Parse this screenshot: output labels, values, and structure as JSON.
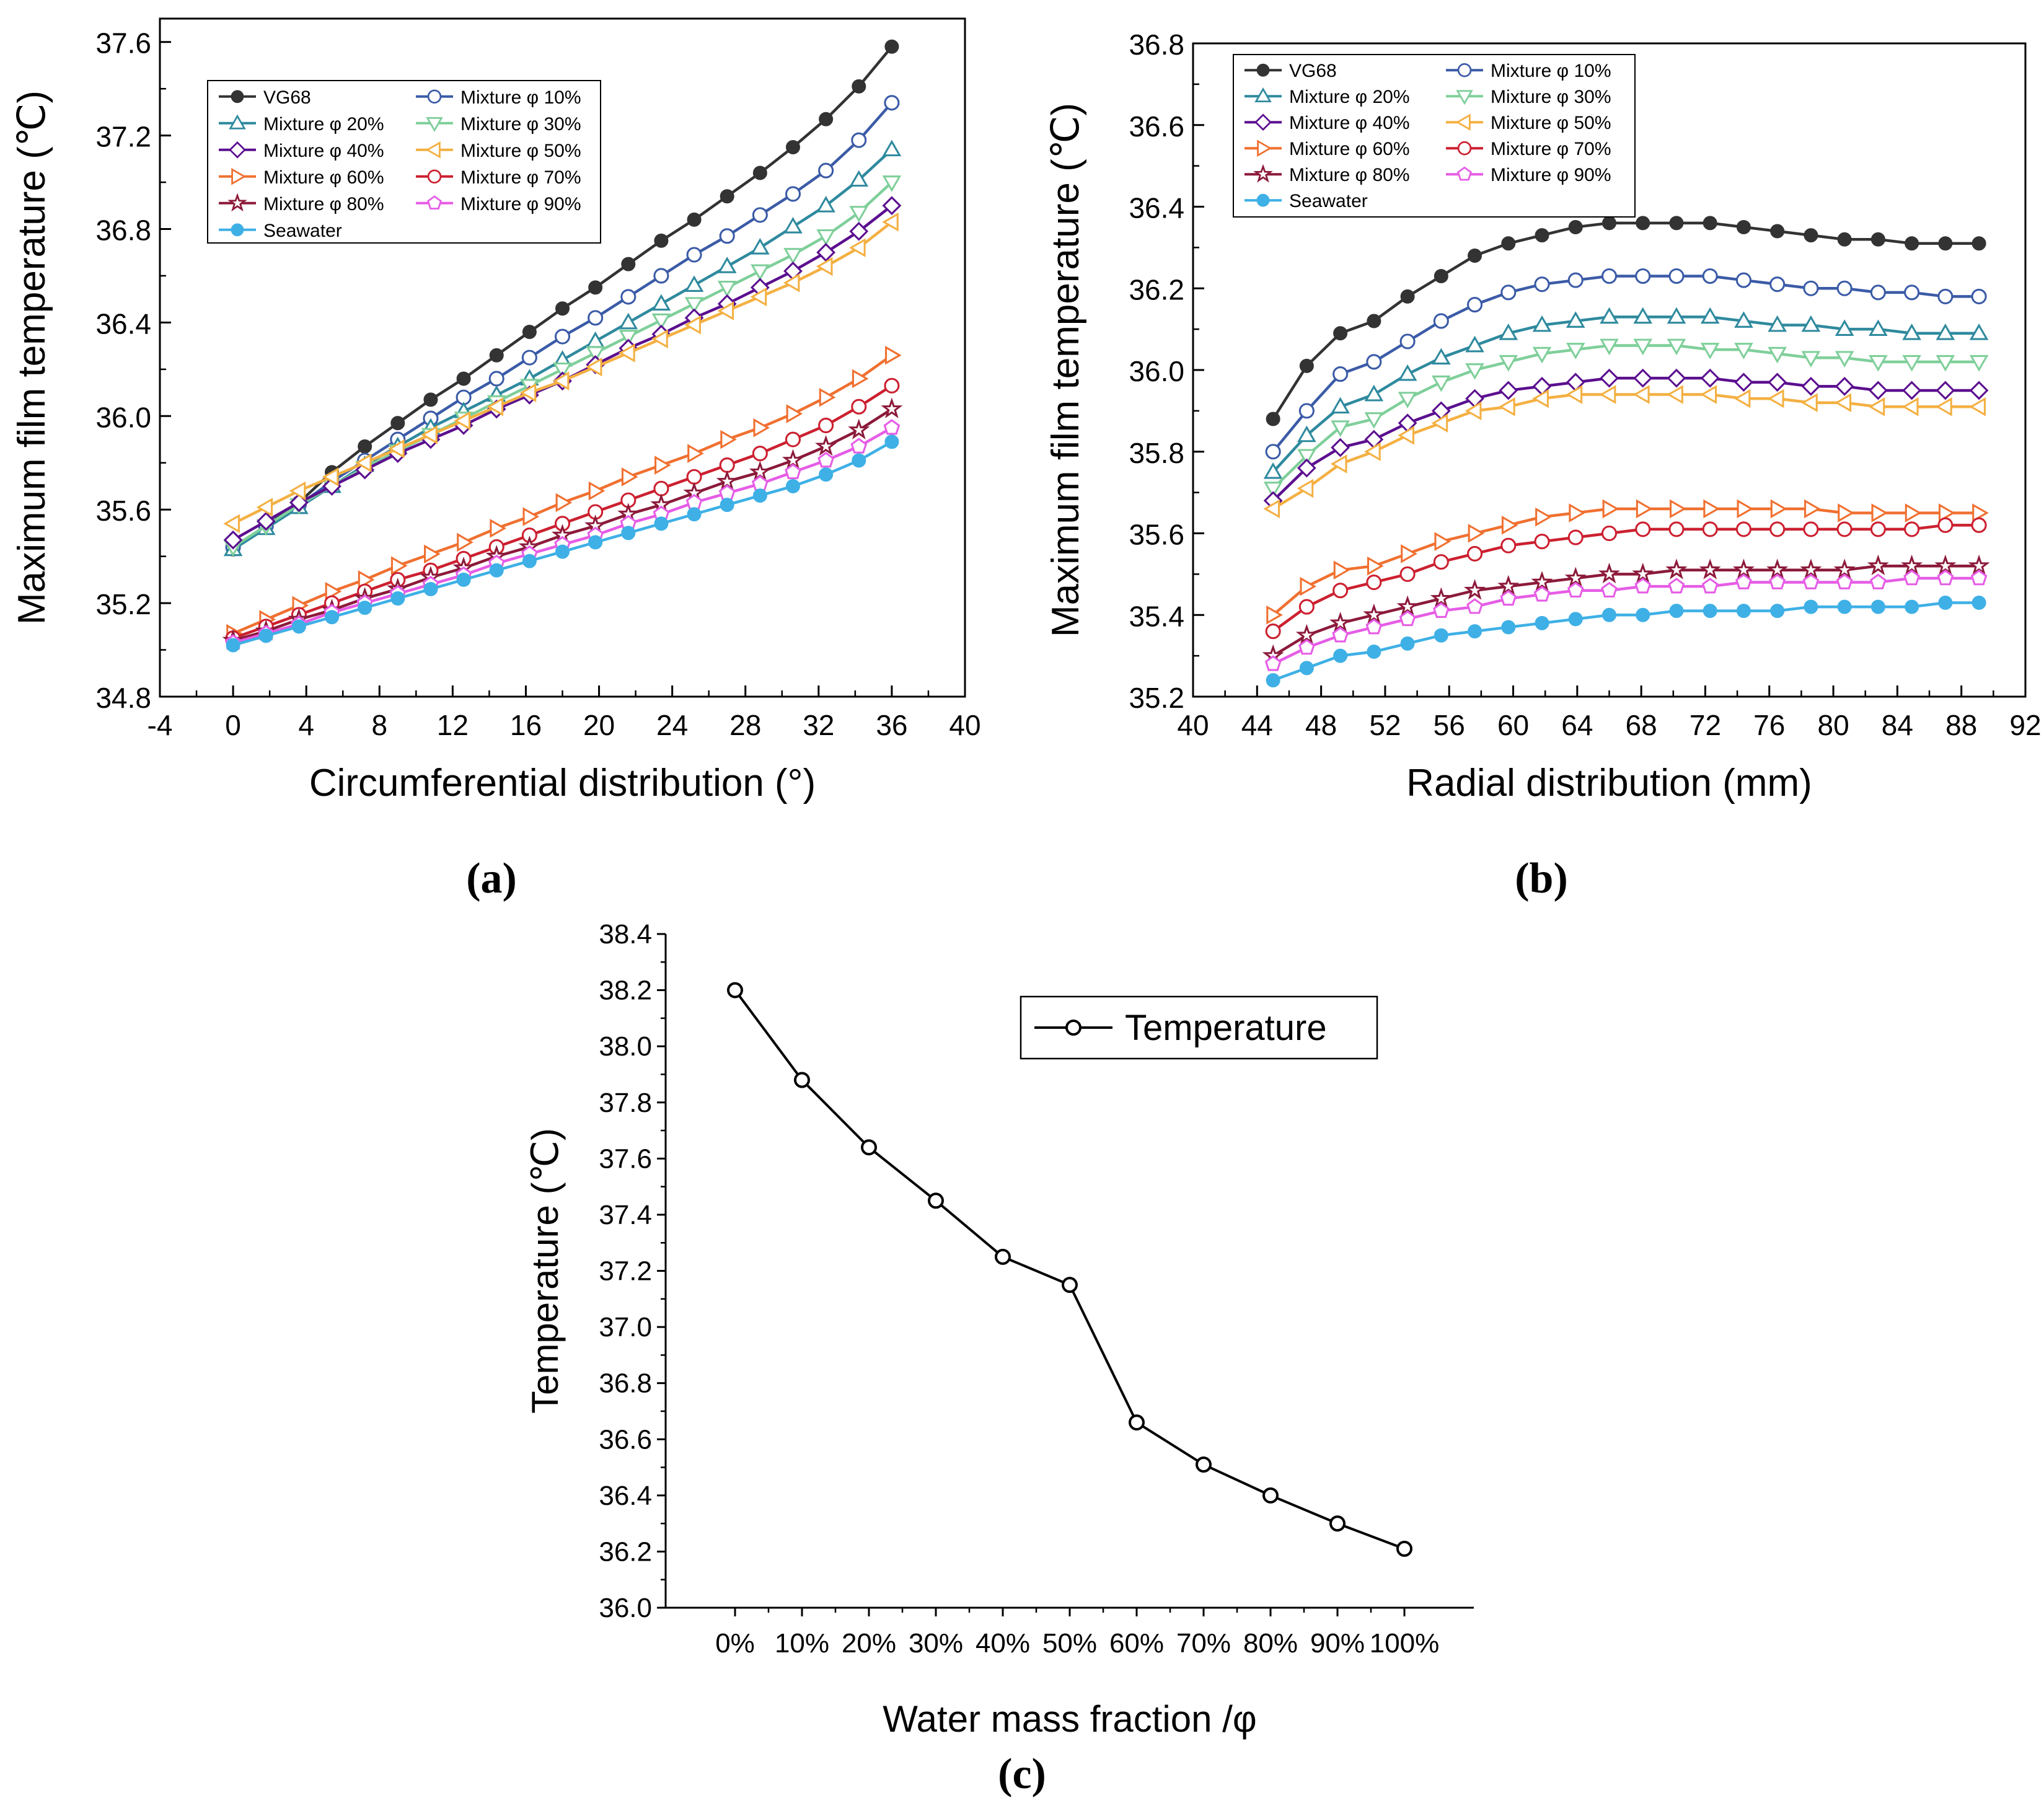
{
  "panels": {
    "a": "(a)",
    "b": "(b)",
    "c": "(c)"
  },
  "chart_data": [
    {
      "id": "a",
      "type": "line",
      "xlabel": "Circumferential distribution (°)",
      "ylabel": "Maximum film temperature (℃)",
      "xlim": [
        -4,
        40
      ],
      "ylim": [
        34.8,
        37.7
      ],
      "xticks": [
        -4,
        0,
        4,
        8,
        12,
        16,
        20,
        24,
        28,
        32,
        36,
        40
      ],
      "xtick_labels": [
        "-4",
        "0",
        "4",
        "8",
        "12",
        "16",
        "20",
        "24",
        "28",
        "32",
        "36",
        "40"
      ],
      "yticks": [
        34.8,
        35.2,
        35.6,
        36.0,
        36.4,
        36.8,
        37.2,
        37.6
      ],
      "ytick_labels": [
        "34.8",
        "35.2",
        "35.6",
        "36.0",
        "36.4",
        "36.8",
        "37.2",
        "37.6"
      ],
      "legend_position": "top-left",
      "x": [
        0,
        1.8,
        3.6,
        5.4,
        7.2,
        9.0,
        10.8,
        12.6,
        14.4,
        16.2,
        18.0,
        19.8,
        21.6,
        23.4,
        25.2,
        27.0,
        28.8,
        30.6,
        32.4,
        34.2,
        36.0
      ],
      "series": [
        {
          "name": "VG68",
          "color": "#333333",
          "marker": "filled-circle",
          "values": [
            35.43,
            35.53,
            35.63,
            35.76,
            35.87,
            35.97,
            36.07,
            36.16,
            36.26,
            36.36,
            36.46,
            36.55,
            36.65,
            36.75,
            36.84,
            36.94,
            37.04,
            37.15,
            37.27,
            37.41,
            37.58
          ]
        },
        {
          "name": "Mixture φ 10%",
          "color": "#3b5ba7",
          "marker": "circle",
          "values": [
            35.44,
            35.53,
            35.62,
            35.72,
            35.81,
            35.9,
            35.99,
            36.08,
            36.16,
            36.25,
            36.34,
            36.42,
            36.51,
            36.6,
            36.69,
            36.77,
            36.86,
            36.95,
            37.05,
            37.18,
            37.34
          ]
        },
        {
          "name": "Mixture φ 20%",
          "color": "#2f8a9e",
          "marker": "triangle-up",
          "values": [
            35.43,
            35.52,
            35.61,
            35.7,
            35.79,
            35.87,
            35.95,
            36.02,
            36.09,
            36.16,
            36.24,
            36.32,
            36.4,
            36.48,
            36.56,
            36.64,
            36.72,
            36.81,
            36.9,
            37.01,
            37.14
          ]
        },
        {
          "name": "Mixture φ 30%",
          "color": "#7fcf9a",
          "marker": "triangle-down",
          "values": [
            35.44,
            35.53,
            35.62,
            35.7,
            35.78,
            35.85,
            35.92,
            35.99,
            36.06,
            36.13,
            36.2,
            36.27,
            36.34,
            36.41,
            36.48,
            36.55,
            36.62,
            36.69,
            36.77,
            36.87,
            37.0
          ]
        },
        {
          "name": "Mixture φ 40%",
          "color": "#5b0f8f",
          "marker": "diamond",
          "values": [
            35.47,
            35.55,
            35.63,
            35.7,
            35.77,
            35.84,
            35.9,
            35.96,
            36.03,
            36.09,
            36.15,
            36.22,
            36.29,
            36.35,
            36.42,
            36.48,
            36.55,
            36.62,
            36.7,
            36.79,
            36.9
          ]
        },
        {
          "name": "Mixture φ 50%",
          "color": "#f4b042",
          "marker": "triangle-left",
          "values": [
            35.54,
            35.61,
            35.68,
            35.74,
            35.8,
            35.86,
            35.92,
            35.98,
            36.04,
            36.1,
            36.15,
            36.21,
            36.27,
            36.33,
            36.39,
            36.45,
            36.51,
            36.57,
            36.64,
            36.72,
            36.83
          ]
        },
        {
          "name": "Mixture φ 60%",
          "color": "#f07030",
          "marker": "triangle-right",
          "values": [
            35.07,
            35.13,
            35.19,
            35.25,
            35.3,
            35.36,
            35.41,
            35.46,
            35.52,
            35.57,
            35.63,
            35.68,
            35.74,
            35.79,
            35.84,
            35.9,
            35.95,
            36.01,
            36.08,
            36.16,
            36.26
          ]
        },
        {
          "name": "Mixture φ 70%",
          "color": "#cc2030",
          "marker": "circle",
          "values": [
            35.05,
            35.1,
            35.15,
            35.2,
            35.25,
            35.3,
            35.34,
            35.39,
            35.44,
            35.49,
            35.54,
            35.59,
            35.64,
            35.69,
            35.74,
            35.79,
            35.84,
            35.9,
            35.96,
            36.04,
            36.13
          ]
        },
        {
          "name": "Mixture φ 80%",
          "color": "#8c1a3a",
          "marker": "star",
          "values": [
            35.04,
            35.08,
            35.13,
            35.17,
            35.22,
            35.26,
            35.31,
            35.35,
            35.4,
            35.44,
            35.49,
            35.53,
            35.58,
            35.62,
            35.67,
            35.72,
            35.76,
            35.81,
            35.87,
            35.94,
            36.03
          ]
        },
        {
          "name": "Mixture φ 90%",
          "color": "#e65ce6",
          "marker": "pentagon",
          "values": [
            35.03,
            35.07,
            35.11,
            35.16,
            35.2,
            35.24,
            35.28,
            35.32,
            35.37,
            35.41,
            35.45,
            35.49,
            35.54,
            35.58,
            35.63,
            35.67,
            35.71,
            35.76,
            35.81,
            35.87,
            35.95
          ]
        },
        {
          "name": "Seawater",
          "color": "#3eb0e6",
          "marker": "filled-circle",
          "values": [
            35.02,
            35.06,
            35.1,
            35.14,
            35.18,
            35.22,
            35.26,
            35.3,
            35.34,
            35.38,
            35.42,
            35.46,
            35.5,
            35.54,
            35.58,
            35.62,
            35.66,
            35.7,
            35.75,
            35.81,
            35.89
          ]
        }
      ]
    },
    {
      "id": "b",
      "type": "line",
      "xlabel": "Radial distribution (mm)",
      "ylabel": "Maximum film temperature (℃)",
      "xlim": [
        40,
        92
      ],
      "ylim": [
        35.2,
        36.8
      ],
      "xticks": [
        40,
        44,
        48,
        52,
        56,
        60,
        64,
        68,
        72,
        76,
        80,
        84,
        88,
        92
      ],
      "xtick_labels": [
        "40",
        "44",
        "48",
        "52",
        "56",
        "60",
        "64",
        "68",
        "72",
        "76",
        "80",
        "84",
        "88",
        "92"
      ],
      "yticks": [
        35.2,
        35.4,
        35.6,
        35.8,
        36.0,
        36.2,
        36.4,
        36.6,
        36.8
      ],
      "ytick_labels": [
        "35.2",
        "35.4",
        "35.6",
        "35.8",
        "36.0",
        "36.2",
        "36.4",
        "36.6",
        "36.8"
      ],
      "legend_position": "top-left",
      "x": [
        45,
        47.1,
        49.2,
        51.3,
        53.4,
        55.5,
        57.6,
        59.7,
        61.8,
        63.9,
        66.0,
        68.1,
        70.2,
        72.3,
        74.4,
        76.5,
        78.6,
        80.7,
        82.8,
        84.9,
        87.0,
        89.1
      ],
      "series": [
        {
          "name": "VG68",
          "color": "#333333",
          "marker": "filled-circle",
          "values": [
            35.88,
            36.01,
            36.09,
            36.12,
            36.18,
            36.23,
            36.28,
            36.31,
            36.33,
            36.35,
            36.36,
            36.36,
            36.36,
            36.36,
            36.35,
            36.34,
            36.33,
            36.32,
            36.32,
            36.31,
            36.31,
            36.31
          ]
        },
        {
          "name": "Mixture φ 10%",
          "color": "#3b5ba7",
          "marker": "circle",
          "values": [
            35.8,
            35.9,
            35.99,
            36.02,
            36.07,
            36.12,
            36.16,
            36.19,
            36.21,
            36.22,
            36.23,
            36.23,
            36.23,
            36.23,
            36.22,
            36.21,
            36.2,
            36.2,
            36.19,
            36.19,
            36.18,
            36.18
          ]
        },
        {
          "name": "Mixture φ 20%",
          "color": "#2f8a9e",
          "marker": "triangle-up",
          "values": [
            35.75,
            35.84,
            35.91,
            35.94,
            35.99,
            36.03,
            36.06,
            36.09,
            36.11,
            36.12,
            36.13,
            36.13,
            36.13,
            36.13,
            36.12,
            36.11,
            36.11,
            36.1,
            36.1,
            36.09,
            36.09,
            36.09
          ]
        },
        {
          "name": "Mixture φ 30%",
          "color": "#7fcf9a",
          "marker": "triangle-down",
          "values": [
            35.71,
            35.79,
            35.86,
            35.88,
            35.93,
            35.97,
            36.0,
            36.02,
            36.04,
            36.05,
            36.06,
            36.06,
            36.06,
            36.05,
            36.05,
            36.04,
            36.03,
            36.03,
            36.02,
            36.02,
            36.02,
            36.02
          ]
        },
        {
          "name": "Mixture φ 40%",
          "color": "#5b0f8f",
          "marker": "diamond",
          "values": [
            35.68,
            35.76,
            35.81,
            35.83,
            35.87,
            35.9,
            35.93,
            35.95,
            35.96,
            35.97,
            35.98,
            35.98,
            35.98,
            35.98,
            35.97,
            35.97,
            35.96,
            35.96,
            35.95,
            35.95,
            35.95,
            35.95
          ]
        },
        {
          "name": "Mixture φ 50%",
          "color": "#f4b042",
          "marker": "triangle-left",
          "values": [
            35.66,
            35.71,
            35.77,
            35.8,
            35.84,
            35.87,
            35.9,
            35.91,
            35.93,
            35.94,
            35.94,
            35.94,
            35.94,
            35.94,
            35.93,
            35.93,
            35.92,
            35.92,
            35.91,
            35.91,
            35.91,
            35.91
          ]
        },
        {
          "name": "Mixture φ 60%",
          "color": "#f07030",
          "marker": "triangle-right",
          "values": [
            35.4,
            35.47,
            35.51,
            35.52,
            35.55,
            35.58,
            35.6,
            35.62,
            35.64,
            35.65,
            35.66,
            35.66,
            35.66,
            35.66,
            35.66,
            35.66,
            35.66,
            35.65,
            35.65,
            35.65,
            35.65,
            35.65
          ]
        },
        {
          "name": "Mixture φ 70%",
          "color": "#cc2030",
          "marker": "circle",
          "values": [
            35.36,
            35.42,
            35.46,
            35.48,
            35.5,
            35.53,
            35.55,
            35.57,
            35.58,
            35.59,
            35.6,
            35.61,
            35.61,
            35.61,
            35.61,
            35.61,
            35.61,
            35.61,
            35.61,
            35.61,
            35.62,
            35.62
          ]
        },
        {
          "name": "Mixture φ 80%",
          "color": "#8c1a3a",
          "marker": "star",
          "values": [
            35.3,
            35.35,
            35.38,
            35.4,
            35.42,
            35.44,
            35.46,
            35.47,
            35.48,
            35.49,
            35.5,
            35.5,
            35.51,
            35.51,
            35.51,
            35.51,
            35.51,
            35.51,
            35.52,
            35.52,
            35.52,
            35.52
          ]
        },
        {
          "name": "Mixture φ 90%",
          "color": "#e65ce6",
          "marker": "pentagon",
          "values": [
            35.28,
            35.32,
            35.35,
            35.37,
            35.39,
            35.41,
            35.42,
            35.44,
            35.45,
            35.46,
            35.46,
            35.47,
            35.47,
            35.47,
            35.48,
            35.48,
            35.48,
            35.48,
            35.48,
            35.49,
            35.49,
            35.49
          ]
        },
        {
          "name": "Seawater",
          "color": "#3eb0e6",
          "marker": "filled-circle",
          "values": [
            35.24,
            35.27,
            35.3,
            35.31,
            35.33,
            35.35,
            35.36,
            35.37,
            35.38,
            35.39,
            35.4,
            35.4,
            35.41,
            35.41,
            35.41,
            35.41,
            35.42,
            35.42,
            35.42,
            35.42,
            35.43,
            35.43
          ]
        }
      ]
    },
    {
      "id": "c",
      "type": "line",
      "xlabel": "Water mass fraction /φ",
      "ylabel": "Temperature (℃)",
      "ylim": [
        36.0,
        38.4
      ],
      "yticks": [
        36.0,
        36.2,
        36.4,
        36.6,
        36.8,
        37.0,
        37.2,
        37.4,
        37.6,
        37.8,
        38.0,
        38.2,
        38.4
      ],
      "ytick_labels": [
        "36.0",
        "36.2",
        "36.4",
        "36.6",
        "36.8",
        "37.0",
        "37.2",
        "37.4",
        "37.6",
        "37.8",
        "38.0",
        "38.2",
        "38.4"
      ],
      "categories": [
        "0%",
        "10%",
        "20%",
        "30%",
        "40%",
        "50%",
        "60%",
        "70%",
        "80%",
        "90%",
        "100%"
      ],
      "legend_position": "top-right",
      "series": [
        {
          "name": "Temperature",
          "color": "#000000",
          "marker": "circle",
          "values": [
            38.2,
            37.88,
            37.64,
            37.45,
            37.25,
            37.15,
            36.66,
            36.51,
            36.4,
            36.3,
            36.21
          ]
        }
      ]
    }
  ]
}
